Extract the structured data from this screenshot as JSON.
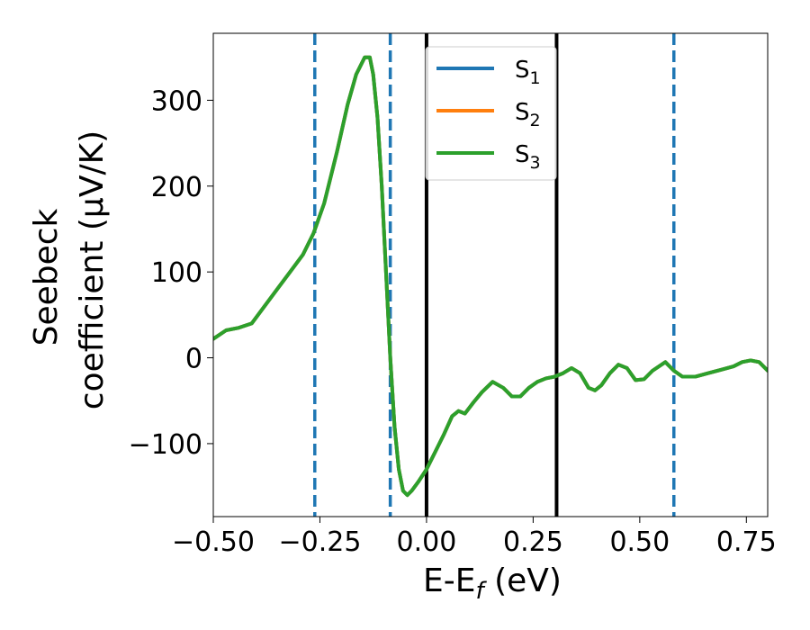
{
  "chart_data": {
    "type": "line",
    "xlabel_main": "E-E",
    "xlabel_sub": "f",
    "xlabel_unit": " (eV)",
    "ylabel_line1": "Seebeck",
    "ylabel_line2": "coefficient  (μV/K)",
    "xlim": [
      -0.5,
      0.8
    ],
    "ylim": [
      -185,
      378
    ],
    "xticks": [
      -0.5,
      -0.25,
      0.0,
      0.25,
      0.5,
      0.75
    ],
    "xtick_labels": [
      "−0.50",
      "−0.25",
      "0.00",
      "0.25",
      "0.50",
      "0.75"
    ],
    "yticks": [
      -100,
      0,
      100,
      200,
      300
    ],
    "ytick_labels": [
      "−100",
      "0",
      "100",
      "200",
      "300"
    ],
    "grid": false,
    "legend_position": "top-center",
    "x": [
      -0.5,
      -0.47,
      -0.44,
      -0.41,
      -0.38,
      -0.35,
      -0.32,
      -0.29,
      -0.265,
      -0.24,
      -0.21,
      -0.185,
      -0.165,
      -0.145,
      -0.133,
      -0.125,
      -0.115,
      -0.105,
      -0.095,
      -0.085,
      -0.075,
      -0.065,
      -0.055,
      -0.045,
      -0.035,
      -0.02,
      0.0,
      0.02,
      0.04,
      0.06,
      0.075,
      0.09,
      0.11,
      0.13,
      0.155,
      0.18,
      0.2,
      0.22,
      0.24,
      0.26,
      0.28,
      0.3,
      0.32,
      0.34,
      0.36,
      0.38,
      0.395,
      0.41,
      0.43,
      0.45,
      0.47,
      0.49,
      0.51,
      0.53,
      0.56,
      0.58,
      0.6,
      0.63,
      0.66,
      0.69,
      0.72,
      0.74,
      0.76,
      0.78,
      0.8
    ],
    "series": [
      {
        "name": "S",
        "name_sub": "1",
        "color": "#1f77b4",
        "y": [
          22,
          32,
          35,
          40,
          60,
          80,
          100,
          120,
          145,
          180,
          240,
          295,
          330,
          350,
          350,
          330,
          280,
          200,
          100,
          0,
          -80,
          -130,
          -155,
          -160,
          -155,
          -145,
          -130,
          -110,
          -90,
          -68,
          -62,
          -65,
          -52,
          -40,
          -28,
          -35,
          -45,
          -45,
          -35,
          -28,
          -24,
          -22,
          -18,
          -12,
          -18,
          -35,
          -38,
          -32,
          -18,
          -8,
          -12,
          -26,
          -25,
          -15,
          -5,
          -15,
          -22,
          -22,
          -18,
          -14,
          -10,
          -5,
          -3,
          -5,
          -15
        ]
      },
      {
        "name": "S",
        "name_sub": "2",
        "color": "#ff7f0e",
        "y": [
          22,
          32,
          35,
          40,
          60,
          80,
          100,
          120,
          145,
          180,
          240,
          295,
          330,
          350,
          350,
          330,
          280,
          200,
          100,
          0,
          -80,
          -130,
          -155,
          -160,
          -155,
          -145,
          -130,
          -110,
          -90,
          -68,
          -62,
          -65,
          -52,
          -40,
          -28,
          -35,
          -45,
          -45,
          -35,
          -28,
          -24,
          -22,
          -18,
          -12,
          -18,
          -35,
          -38,
          -32,
          -18,
          -8,
          -12,
          -26,
          -25,
          -15,
          -5,
          -15,
          -22,
          -22,
          -18,
          -14,
          -10,
          -5,
          -3,
          -5,
          -15
        ]
      },
      {
        "name": "S",
        "name_sub": "3",
        "color": "#2ca02c",
        "y": [
          22,
          32,
          35,
          40,
          60,
          80,
          100,
          120,
          145,
          180,
          240,
          295,
          330,
          350,
          350,
          330,
          280,
          200,
          100,
          0,
          -80,
          -130,
          -155,
          -160,
          -155,
          -145,
          -130,
          -110,
          -90,
          -68,
          -62,
          -65,
          -52,
          -40,
          -28,
          -35,
          -45,
          -45,
          -35,
          -28,
          -24,
          -22,
          -18,
          -12,
          -18,
          -35,
          -38,
          -32,
          -18,
          -8,
          -12,
          -26,
          -25,
          -15,
          -5,
          -15,
          -22,
          -22,
          -18,
          -14,
          -10,
          -5,
          -3,
          -5,
          -15
        ]
      }
    ],
    "vlines": [
      {
        "x": -0.262,
        "style": "dashed",
        "color": "#1f77b4"
      },
      {
        "x": -0.085,
        "style": "dashed",
        "color": "#1f77b4"
      },
      {
        "x": 0.0,
        "style": "solid",
        "color": "#000000"
      },
      {
        "x": 0.305,
        "style": "solid",
        "color": "#000000"
      },
      {
        "x": 0.58,
        "style": "dashed",
        "color": "#1f77b4"
      }
    ]
  }
}
